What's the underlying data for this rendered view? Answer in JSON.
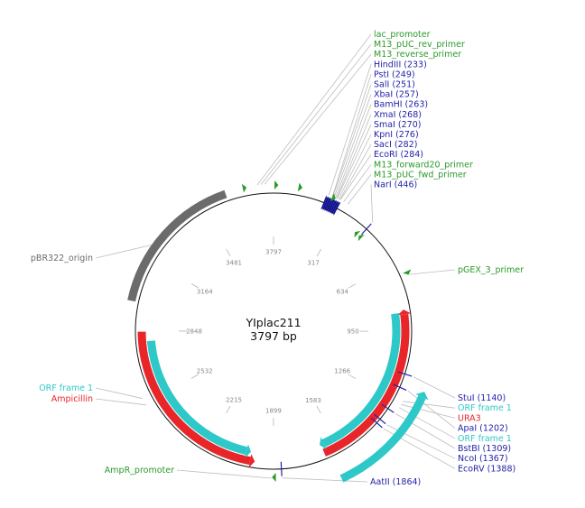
{
  "plasmid": {
    "name": "YIplac211",
    "length_bp": 3797,
    "length_label": "3797 bp"
  },
  "colors": {
    "enzyme": "#2323a8",
    "primer": "#2a9a2a",
    "orf": "#2ec8c8",
    "gene": "#e8262a",
    "origin": "#6b6b6b",
    "backbone": "#111111",
    "leader": "#bdbdbd"
  },
  "ticks": [
    {
      "bp": 0,
      "label": "3797"
    },
    {
      "bp": 317,
      "label": "317"
    },
    {
      "bp": 634,
      "label": "634"
    },
    {
      "bp": 950,
      "label": "950"
    },
    {
      "bp": 1266,
      "label": "1266"
    },
    {
      "bp": 1583,
      "label": "1583"
    },
    {
      "bp": 1899,
      "label": "1899"
    },
    {
      "bp": 2215,
      "label": "2215"
    },
    {
      "bp": 2532,
      "label": "2532"
    },
    {
      "bp": 2848,
      "label": "2848"
    },
    {
      "bp": 3164,
      "label": "3164"
    },
    {
      "bp": 3481,
      "label": "3481"
    }
  ],
  "features": [
    {
      "name": "pBR322_origin",
      "type": "origin",
      "start": 2975,
      "end": 3594,
      "direction": "none",
      "track": 0
    },
    {
      "name": "URA3",
      "type": "gene",
      "start": 850,
      "end": 1660,
      "direction": "reverse",
      "track": 0
    },
    {
      "name": "Ampicillin",
      "type": "gene",
      "start": 1985,
      "end": 2845,
      "direction": "reverse",
      "track": 0
    },
    {
      "name": "ORF frame 1 (URA3)",
      "type": "orf",
      "start": 863,
      "end": 1666,
      "direction": "forward",
      "track": 1
    },
    {
      "name": "ORF frame 1",
      "type": "orf",
      "start": 2010,
      "end": 2800,
      "direction": "reverse",
      "track": 1
    },
    {
      "name": "ORF frame 1 (short)",
      "type": "orf",
      "start": 1180,
      "end": 1637,
      "direction": "reverse",
      "track": 2
    }
  ],
  "primer_marks": [
    {
      "bp": 3685,
      "direction": "forward"
    },
    {
      "bp": 20,
      "direction": "forward"
    },
    {
      "bp": 120,
      "direction": "forward"
    },
    {
      "bp": 265,
      "direction": "forward"
    },
    {
      "bp": 415,
      "direction": "reverse"
    },
    {
      "bp": 440,
      "direction": "reverse"
    },
    {
      "bp": 710,
      "direction": "forward"
    },
    {
      "bp": 1905,
      "direction": "forward"
    }
  ],
  "mcs_block": {
    "start": 225,
    "end": 290
  },
  "site_marks": [
    {
      "bp": 446
    },
    {
      "bp": 1140
    },
    {
      "bp": 1202
    },
    {
      "bp": 1309
    },
    {
      "bp": 1367
    },
    {
      "bp": 1388
    },
    {
      "bp": 1864
    }
  ],
  "labels_top": [
    {
      "text": "lac_promoter",
      "kind": "primer",
      "bp": 3730
    },
    {
      "text": "M13_pUC_rev_primer",
      "kind": "primer",
      "bp": 3745
    },
    {
      "text": "M13_reverse_primer",
      "kind": "primer",
      "bp": 3760
    },
    {
      "text": "HindIII  (233)",
      "kind": "enzyme",
      "bp": 233
    },
    {
      "text": "PstI  (249)",
      "kind": "enzyme",
      "bp": 249
    },
    {
      "text": "SalI  (251)",
      "kind": "enzyme",
      "bp": 251
    },
    {
      "text": "XbaI  (257)",
      "kind": "enzyme",
      "bp": 257
    },
    {
      "text": "BamHI  (263)",
      "kind": "enzyme",
      "bp": 263
    },
    {
      "text": "XmaI  (268)",
      "kind": "enzyme",
      "bp": 268
    },
    {
      "text": "SmaI  (270)",
      "kind": "enzyme",
      "bp": 270
    },
    {
      "text": "KpnI  (276)",
      "kind": "enzyme",
      "bp": 276
    },
    {
      "text": "SacI  (282)",
      "kind": "enzyme",
      "bp": 282
    },
    {
      "text": "EcoRI  (284)",
      "kind": "enzyme",
      "bp": 284
    },
    {
      "text": "M13_forward20_primer",
      "kind": "primer",
      "bp": 300
    },
    {
      "text": "M13_pUC_fwd_primer",
      "kind": "primer",
      "bp": 320
    },
    {
      "text": "NarI  (446)",
      "kind": "enzyme",
      "bp": 446
    }
  ],
  "labels_right_top": [
    {
      "text": "pGEX_3_primer",
      "kind": "primer",
      "bp": 710
    }
  ],
  "labels_right_bottom": [
    {
      "text": "StuI  (1140)",
      "kind": "enzyme",
      "bp": 1140
    },
    {
      "text": "ORF frame 1",
      "kind": "orf",
      "bp": 1250
    },
    {
      "text": "URA3",
      "kind": "gene",
      "bp": 1265
    },
    {
      "text": "ApaI  (1202)",
      "kind": "enzyme",
      "bp": 1202
    },
    {
      "text": "ORF frame 1",
      "kind": "orf",
      "bp": 1280
    },
    {
      "text": "BstBI  (1309)",
      "kind": "enzyme",
      "bp": 1309
    },
    {
      "text": "NcoI  (1367)",
      "kind": "enzyme",
      "bp": 1367
    },
    {
      "text": "EcoRV  (1388)",
      "kind": "enzyme",
      "bp": 1388
    },
    {
      "text": "AatII  (1864)",
      "kind": "enzyme",
      "bp": 1864
    }
  ],
  "labels_left": [
    {
      "text": "pBR322_origin",
      "kind": "origin",
      "bp": 3230
    },
    {
      "text": "ORF frame 1",
      "kind": "orf",
      "bp": 2560
    },
    {
      "text": "Ampicillin",
      "kind": "gene",
      "bp": 2530
    },
    {
      "text": "AmpR_promoter",
      "kind": "primer",
      "bp": 1905
    }
  ]
}
